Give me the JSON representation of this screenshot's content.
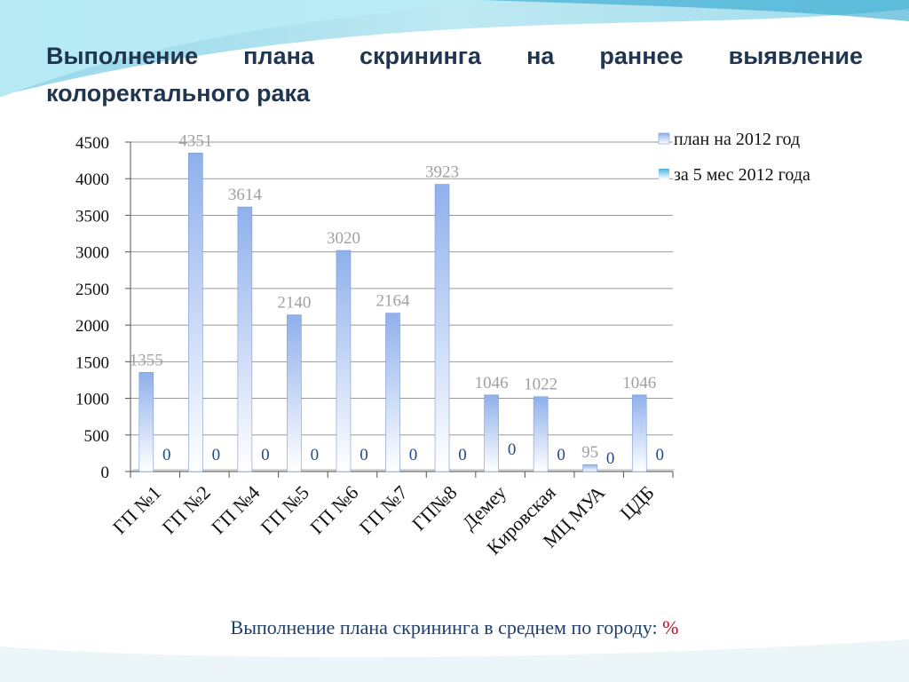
{
  "title": "Выполнение плана скрининга на раннее выявление колоректального рака",
  "footer": {
    "text": "Выполнение плана скрининга в среднем по городу: ",
    "percent_sign": "%"
  },
  "colors": {
    "plan": "#8fb0ec",
    "actual": "#4fb3e6",
    "title": "#1f3550",
    "footer_pct": "#b0102a"
  },
  "chart_data": {
    "type": "bar",
    "categories": [
      "ГП №1",
      "ГП №2",
      "ГП №4",
      "ГП №5",
      "ГП №6",
      "ГП №7",
      "ГП№8",
      "Демеу",
      "Кировская",
      "МЦ МУА",
      "ЦДБ"
    ],
    "series": [
      {
        "name": "план на 2012 год",
        "values": [
          1355,
          4351,
          3614,
          2140,
          3020,
          2164,
          3923,
          1046,
          1022,
          95,
          1046
        ]
      },
      {
        "name": "за 5 мес 2012 года",
        "values": [
          0,
          0,
          0,
          0,
          0,
          0,
          0,
          0,
          0,
          0,
          0
        ]
      }
    ],
    "ylim": [
      0,
      4500
    ],
    "yticks": [
      0,
      500,
      1000,
      1500,
      2000,
      2500,
      3000,
      3500,
      4000,
      4500
    ],
    "grid": true,
    "legend": "top-right"
  }
}
